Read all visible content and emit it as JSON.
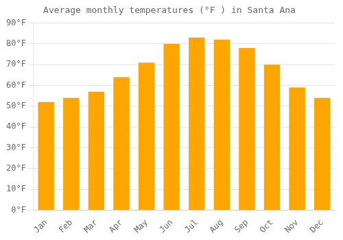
{
  "chart_data": {
    "type": "bar",
    "title": "Average monthly temperatures (°F ) in Santa Ana",
    "categories": [
      "Jan",
      "Feb",
      "Mar",
      "Apr",
      "May",
      "Jun",
      "Jul",
      "Aug",
      "Sep",
      "Oct",
      "Nov",
      "Dec"
    ],
    "values": [
      52,
      54,
      57,
      64,
      71,
      80,
      83,
      82,
      78,
      70,
      59,
      54
    ],
    "color": "#FFA500",
    "ylim": [
      0,
      90
    ],
    "yticks": [
      {
        "value": 0,
        "label": "0°F"
      },
      {
        "value": 10,
        "label": "10°F"
      },
      {
        "value": 20,
        "label": "20°F"
      },
      {
        "value": 30,
        "label": "30°F"
      },
      {
        "value": 40,
        "label": "40°F"
      },
      {
        "value": 50,
        "label": "50°F"
      },
      {
        "value": 60,
        "label": "60°F"
      },
      {
        "value": 70,
        "label": "70°F"
      },
      {
        "value": 80,
        "label": "80°F"
      },
      {
        "value": 90,
        "label": "90°F"
      }
    ],
    "grid": true
  }
}
